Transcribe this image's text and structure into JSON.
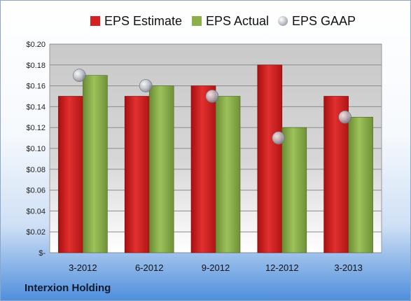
{
  "company": "Interxion Holding",
  "colors": {
    "estimate": "#d42020",
    "actual": "#8bb04a",
    "gaap": "#b8bcc4"
  },
  "chart_data": {
    "type": "bar",
    "categories": [
      "3-2012",
      "6-2012",
      "9-2012",
      "12-2012",
      "3-2013"
    ],
    "series": [
      {
        "name": "EPS Estimate",
        "kind": "bar",
        "values": [
          0.15,
          0.15,
          0.16,
          0.18,
          0.15
        ]
      },
      {
        "name": "EPS Actual",
        "kind": "bar",
        "values": [
          0.17,
          0.16,
          0.15,
          0.12,
          0.13
        ]
      },
      {
        "name": "EPS GAAP",
        "kind": "marker",
        "values": [
          0.17,
          0.16,
          0.15,
          0.11,
          0.13
        ]
      }
    ],
    "ylim": [
      0,
      0.2
    ],
    "yticks": [
      0,
      0.02,
      0.04,
      0.06,
      0.08,
      0.1,
      0.12,
      0.14,
      0.16,
      0.18,
      0.2
    ],
    "yticklabels": [
      "$-",
      "$0.02",
      "$0.04",
      "$0.06",
      "$0.08",
      "$0.10",
      "$0.12",
      "$0.14",
      "$0.16",
      "$0.18",
      "$0.20"
    ],
    "legend": "top",
    "grid": true
  }
}
